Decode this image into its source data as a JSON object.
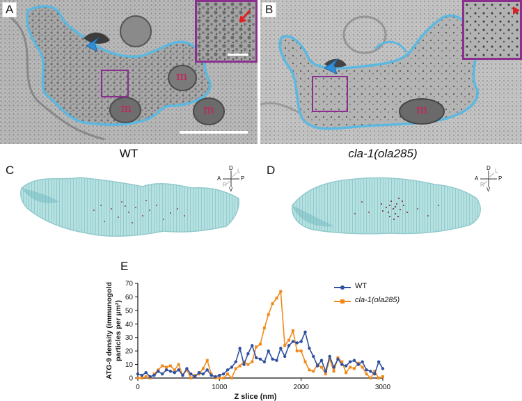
{
  "panels": {
    "a": {
      "letter": "A",
      "caption": "WT",
      "mito_label": "m"
    },
    "b": {
      "letter": "B",
      "caption_gene": "cla-1",
      "caption_allele": "(ola285)",
      "mito_label": "m"
    },
    "c": {
      "letter": "C"
    },
    "d": {
      "letter": "D"
    },
    "e": {
      "letter": "E"
    }
  },
  "compass": {
    "d": "D",
    "l": "L",
    "a": "A",
    "p": "P",
    "r": "R",
    "v": "V"
  },
  "colors": {
    "outline": "#5bb8e0",
    "inset_frame": "#8a2f8e",
    "arrowhead": "#2e8ed8",
    "mito_text": "#c8205a",
    "wt_series": "#2f4f9f",
    "mutant_series": "#f08a1c",
    "reconstruction": "#a9dcdc"
  },
  "chart_data": {
    "type": "line",
    "xlabel": "Z slice (nm)",
    "ylabel_lines": [
      "ATG-9 density (immunogold",
      "particles per µm²)"
    ],
    "xlim": [
      0,
      3000
    ],
    "ylim": [
      0,
      70
    ],
    "xticks": [
      0,
      1000,
      2000,
      3000
    ],
    "yticks": [
      0,
      10,
      20,
      30,
      40,
      50,
      60,
      70
    ],
    "legend_position": "top-right",
    "series": [
      {
        "name": "WT",
        "color": "#2f4f9f",
        "x": [
          0,
          50,
          100,
          150,
          200,
          250,
          300,
          350,
          400,
          450,
          500,
          550,
          600,
          650,
          700,
          750,
          800,
          850,
          900,
          950,
          1000,
          1050,
          1100,
          1150,
          1200,
          1250,
          1300,
          1350,
          1400,
          1450,
          1500,
          1550,
          1600,
          1650,
          1700,
          1750,
          1800,
          1850,
          1900,
          1950,
          2000,
          2050,
          2100,
          2150,
          2200,
          2250,
          2300,
          2350,
          2400,
          2450,
          2500,
          2550,
          2600,
          2650,
          2700,
          2750,
          2800,
          2850,
          2900,
          2950,
          3000
        ],
        "values": [
          3,
          2,
          4,
          1,
          2,
          5,
          3,
          6,
          5,
          4,
          6,
          2,
          7,
          3,
          1,
          4,
          3,
          6,
          2,
          1,
          2,
          3,
          6,
          8,
          12,
          22,
          10,
          18,
          24,
          15,
          14,
          12,
          20,
          14,
          13,
          22,
          16,
          24,
          27,
          26,
          27,
          34,
          22,
          16,
          9,
          13,
          5,
          16,
          8,
          14,
          10,
          9,
          12,
          13,
          10,
          12,
          6,
          5,
          3,
          12,
          7
        ]
      },
      {
        "name": "cla-1(ola285)",
        "color": "#f08a1c",
        "x": [
          0,
          50,
          100,
          150,
          200,
          250,
          300,
          350,
          400,
          450,
          500,
          550,
          600,
          650,
          700,
          750,
          800,
          850,
          900,
          950,
          1000,
          1050,
          1100,
          1150,
          1200,
          1250,
          1300,
          1350,
          1400,
          1450,
          1500,
          1550,
          1600,
          1650,
          1700,
          1750,
          1800,
          1850,
          1900,
          1950,
          2000,
          2050,
          2100,
          2150,
          2200,
          2250,
          2300,
          2350,
          2400,
          2450,
          2500,
          2550,
          2600,
          2650,
          2700,
          2750,
          2800,
          2850,
          2900,
          2950,
          3000
        ],
        "values": [
          0,
          0,
          1,
          0,
          3,
          6,
          9,
          8,
          9,
          6,
          10,
          2,
          6,
          0,
          2,
          3,
          7,
          13,
          3,
          0,
          0,
          0,
          3,
          0,
          7,
          9,
          12,
          10,
          12,
          23,
          25,
          37,
          47,
          55,
          59,
          64,
          24,
          28,
          35,
          20,
          20,
          12,
          6,
          5,
          10,
          8,
          3,
          14,
          5,
          15,
          12,
          4,
          8,
          7,
          11,
          8,
          3,
          0,
          5,
          0,
          1
        ]
      }
    ]
  }
}
